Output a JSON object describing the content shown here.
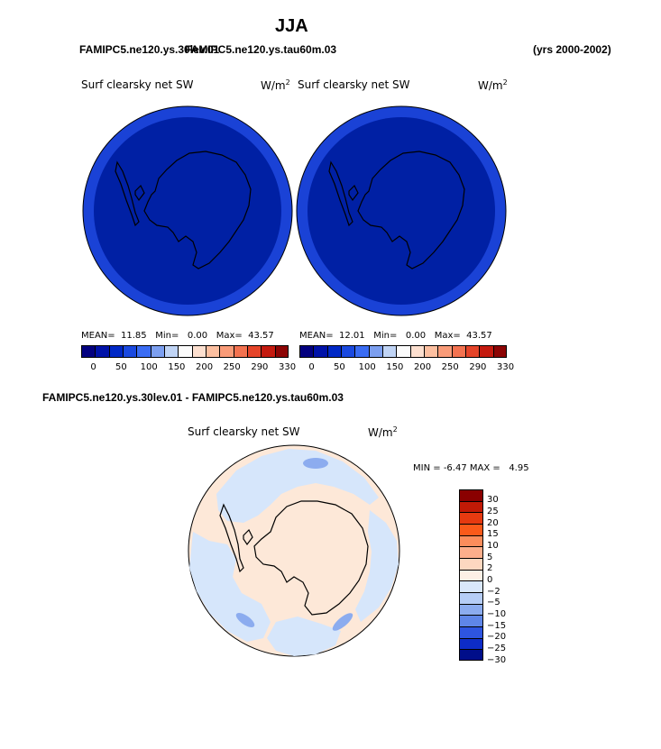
{
  "header": {
    "season": "JJA",
    "case_a": "FAMIPC5.ne120.ys.30lev.01",
    "case_b": "FAMIPC5.ne120.ys.tau60m.03",
    "overlap_a": "(yrs 2000-",
    "overlap_b": "002)",
    "years": "(yrs 2000-2002)"
  },
  "panels": [
    {
      "title": "Surf clearsky net SW",
      "units": "W/m",
      "units_sup": "2",
      "stats": {
        "mean_label": "MEAN=",
        "mean": "11.85",
        "min_label": "Min=",
        "min": "0.00",
        "max_label": "Max=",
        "max": "43.57"
      },
      "ocean_color": "#1a42d6",
      "land_color": "#0020a4"
    },
    {
      "title": "Surf clearsky net SW",
      "units": "W/m",
      "units_sup": "2",
      "stats": {
        "mean_label": "MEAN=",
        "mean": "12.01",
        "min_label": "Min=",
        "min": "0.00",
        "max_label": "Max=",
        "max": "43.57"
      },
      "ocean_color": "#1a42d6",
      "land_color": "#0020a4"
    }
  ],
  "top_colorbar": {
    "colors": [
      "#03007f",
      "#0012a8",
      "#0028c6",
      "#1a49e0",
      "#3a6cf3",
      "#7c9ff0",
      "#c0d4f5",
      "#fbfbfb",
      "#fcdfcf",
      "#fcbfa0",
      "#f99b78",
      "#f37250",
      "#e54429",
      "#c41a0f",
      "#8c0404"
    ],
    "labels": [
      "0",
      "50",
      "100",
      "150",
      "200",
      "250",
      "290",
      "330"
    ]
  },
  "diff": {
    "title_line": "FAMIPC5.ne120.ys.30lev.01 - FAMIPC5.ne120.ys.tau60m.03",
    "panel_title": "Surf clearsky net SW",
    "units": "W/m",
    "units_sup": "2",
    "min_label": "MIN =",
    "min": "-6.47",
    "max_label": "MAX =",
    "max": "4.95",
    "colorbar": {
      "colors": [
        "#8a0000",
        "#c11a06",
        "#e63a10",
        "#fa5a1a",
        "#fb8d5c",
        "#fcae8b",
        "#fdd7c0",
        "#fdf0e6",
        "#d9e7fb",
        "#b6cdf6",
        "#8cacef",
        "#5f86e8",
        "#2e55e0",
        "#0d2cc7",
        "#000e8a"
      ],
      "labels": [
        "30",
        "25",
        "20",
        "15",
        "10",
        "5",
        "2",
        "0",
        "−2",
        "−5",
        "−10",
        "−15",
        "−20",
        "−25",
        "−30"
      ]
    },
    "ocean_color": "#fde8d8",
    "neg_color": "#d6e6fb"
  }
}
